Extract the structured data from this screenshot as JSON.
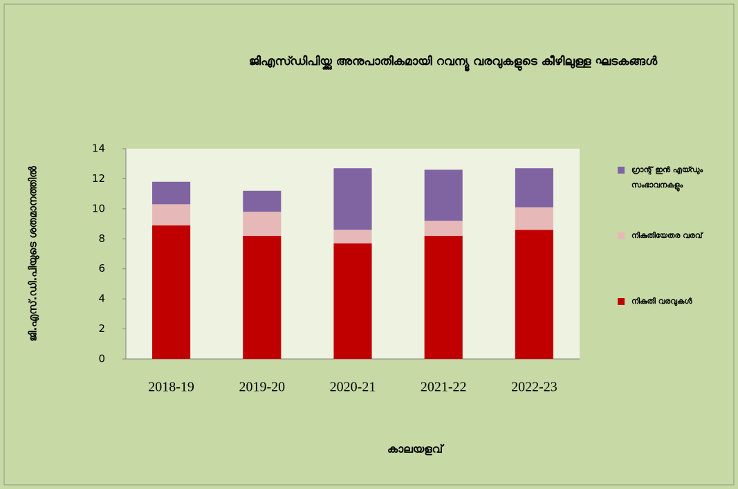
{
  "chart_data": {
    "type": "stacked_bar",
    "title": "ജിഎസ്ഡിപിയ്ക്കു അനുപാതികമായി റവന്യൂ വരവുകളുടെ കീഴിലുള്ള ഘടകങ്ങൾ",
    "y_label": "ജി.എസ്.ഡി.പിയുടെ ശതമാനത്തിൽ",
    "x_label": "കാലയളവ്",
    "categories": [
      "2018-19",
      "2019-20",
      "2020-21",
      "2021-22",
      "2022-23"
    ],
    "series": [
      {
        "name": "നികുതി വരവുകൾ",
        "color": "#c00000",
        "values": [
          8.9,
          8.2,
          7.7,
          8.2,
          8.6
        ]
      },
      {
        "name": "നികുതിയേതര വരവ്",
        "color": "#e6b9b8",
        "values": [
          1.4,
          1.6,
          0.9,
          1.0,
          1.5
        ]
      },
      {
        "name": "ഗ്രാന്റ് ഇൻ എയ്ഡും സംഭാവനകളും",
        "color": "#8064a2",
        "values": [
          1.5,
          1.4,
          4.1,
          3.4,
          2.6
        ]
      }
    ],
    "ylim": [
      0,
      14
    ],
    "yticks": [
      0,
      2,
      4,
      6,
      8,
      10,
      12,
      14
    ],
    "legend": "right"
  }
}
